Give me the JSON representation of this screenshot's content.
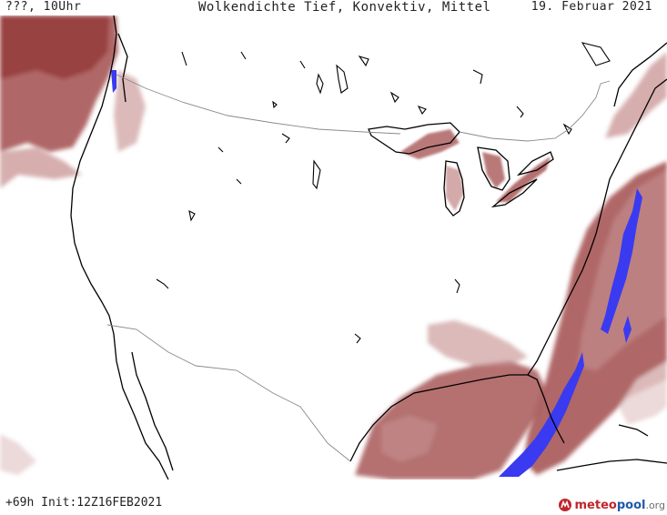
{
  "header": {
    "left": "???, 10Uhr",
    "center": "Wolkendichte  Tief, Konvektiv, Mittel",
    "right": "19. Februar 2021"
  },
  "footer": {
    "run_info": "+69h Init:12Z16FEB2021"
  },
  "logo": {
    "part1": "meteo",
    "part2": "pool",
    "part3": ".org"
  },
  "colors": {
    "cloud_light": "#e7cfcf",
    "cloud_mid": "#c48c8c",
    "cloud_dark": "#a24d4d",
    "cloud_darkest": "#8e3232",
    "convective": "#3a3af0",
    "coastline": "#000000",
    "border": "#8a8a8a",
    "logo_red": "#c0262d",
    "logo_blue": "#1e5aa8"
  },
  "map": {
    "region": "USA",
    "field": "cloud-cover"
  }
}
